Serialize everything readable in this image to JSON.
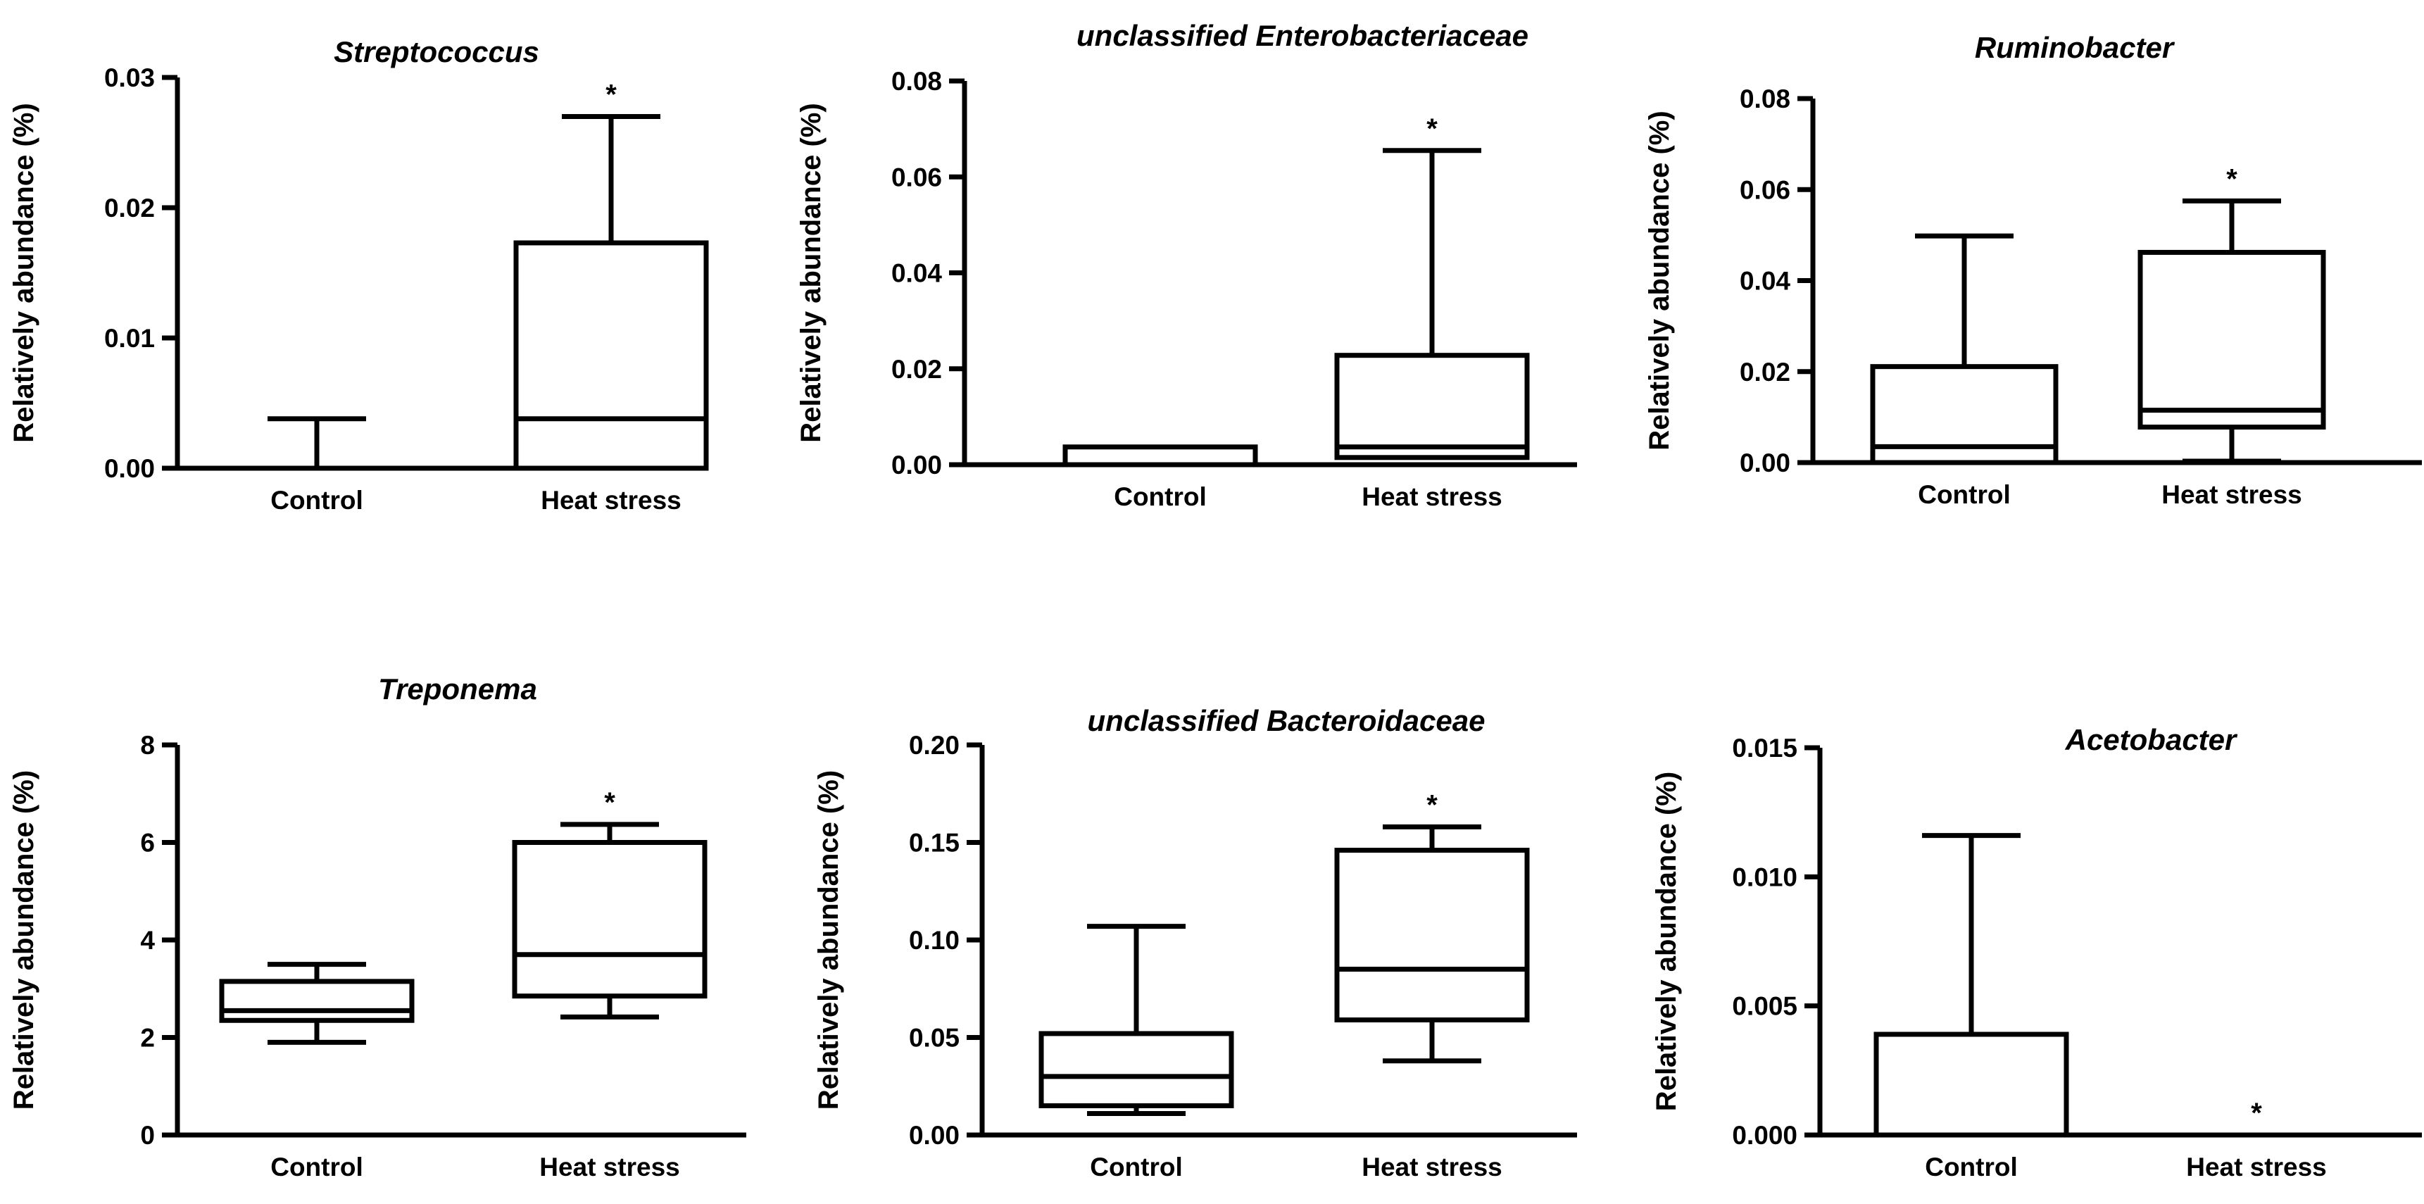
{
  "chart_data": [
    {
      "type": "box",
      "title": "Streptococcus",
      "ylabel": "Relatively abundance (%)",
      "xlabel": "",
      "categories": [
        "Control",
        "Heat stress"
      ],
      "ylim": [
        0,
        0.03
      ],
      "yticks": [
        0.0,
        0.01,
        0.02,
        0.03
      ],
      "ytick_labels": [
        "0.00",
        "0.01",
        "0.02",
        "0.03"
      ],
      "boxes": [
        {
          "whisker_low": 0,
          "q1": 0,
          "median": 0,
          "q3": 0,
          "whisker_high": 0.0038
        },
        {
          "whisker_low": 0,
          "q1": 0,
          "median": 0.0038,
          "q3": 0.0173,
          "whisker_high": 0.027
        }
      ],
      "significance": [
        "",
        "*"
      ]
    },
    {
      "type": "box",
      "title": "unclassified Enterobacteriaceae",
      "ylabel": "Relatively abundance (%)",
      "xlabel": "",
      "categories": [
        "Control",
        "Heat stress"
      ],
      "ylim": [
        0,
        0.08
      ],
      "yticks": [
        0.0,
        0.02,
        0.04,
        0.06,
        0.08
      ],
      "ytick_labels": [
        "0.00",
        "0.02",
        "0.04",
        "0.06",
        "0.08"
      ],
      "boxes": [
        {
          "whisker_low": 0,
          "q1": 0,
          "median": 0,
          "q3": 0.0037,
          "whisker_high": 0.0037
        },
        {
          "whisker_low": 0.0015,
          "q1": 0.0015,
          "median": 0.0037,
          "q3": 0.0228,
          "whisker_high": 0.0655
        }
      ],
      "significance": [
        "",
        "*"
      ]
    },
    {
      "type": "box",
      "title": "Ruminobacter",
      "ylabel": "Relatively abundance (%)",
      "xlabel": "",
      "categories": [
        "Control",
        "Heat stress"
      ],
      "ylim": [
        0,
        0.08
      ],
      "yticks": [
        0.0,
        0.02,
        0.04,
        0.06,
        0.08
      ],
      "ytick_labels": [
        "0.00",
        "0.02",
        "0.04",
        "0.06",
        "0.08"
      ],
      "boxes": [
        {
          "whisker_low": 0,
          "q1": 0,
          "median": 0.0035,
          "q3": 0.0211,
          "whisker_high": 0.0498
        },
        {
          "whisker_low": 0.0003,
          "q1": 0.0078,
          "median": 0.0115,
          "q3": 0.0462,
          "whisker_high": 0.0575
        }
      ],
      "significance": [
        "",
        "*"
      ]
    },
    {
      "type": "box",
      "title": "Treponema",
      "ylabel": "Relatively abundance (%)",
      "xlabel": "",
      "categories": [
        "Control",
        "Heat stress"
      ],
      "ylim": [
        0,
        8
      ],
      "yticks": [
        0,
        2,
        4,
        6,
        8
      ],
      "ytick_labels": [
        "0",
        "2",
        "4",
        "6",
        "8"
      ],
      "boxes": [
        {
          "whisker_low": 1.9,
          "q1": 2.35,
          "median": 2.55,
          "q3": 3.15,
          "whisker_high": 3.5
        },
        {
          "whisker_low": 2.42,
          "q1": 2.85,
          "median": 3.7,
          "q3": 6.0,
          "whisker_high": 6.37
        }
      ],
      "significance": [
        "",
        "*"
      ]
    },
    {
      "type": "box",
      "title": "unclassified Bacteroidaceae",
      "ylabel": "Relatively abundance (%)",
      "xlabel": "",
      "categories": [
        "Control",
        "Heat stress"
      ],
      "ylim": [
        0,
        0.2
      ],
      "yticks": [
        0.0,
        0.05,
        0.1,
        0.15,
        0.2
      ],
      "ytick_labels": [
        "0.00",
        "0.05",
        "0.10",
        "0.15",
        "0.20"
      ],
      "boxes": [
        {
          "whisker_low": 0.011,
          "q1": 0.015,
          "median": 0.03,
          "q3": 0.052,
          "whisker_high": 0.107
        },
        {
          "whisker_low": 0.038,
          "q1": 0.059,
          "median": 0.085,
          "q3": 0.146,
          "whisker_high": 0.158
        }
      ],
      "significance": [
        "",
        "*"
      ]
    },
    {
      "type": "box",
      "title": "Acetobacter",
      "ylabel": "Relatively abundance (%)",
      "xlabel": "",
      "categories": [
        "Control",
        "Heat stress"
      ],
      "ylim": [
        0,
        0.015
      ],
      "yticks": [
        0.0,
        0.005,
        0.01,
        0.015
      ],
      "ytick_labels": [
        "0.000",
        "0.005",
        "0.010",
        "0.015"
      ],
      "boxes": [
        {
          "whisker_low": 0,
          "q1": 0,
          "median": 0,
          "q3": 0.0039,
          "whisker_high": 0.0116
        },
        {
          "whisker_low": 0,
          "q1": 0,
          "median": 0,
          "q3": 0,
          "whisker_high": 0
        }
      ],
      "significance": [
        "",
        "*"
      ]
    }
  ]
}
